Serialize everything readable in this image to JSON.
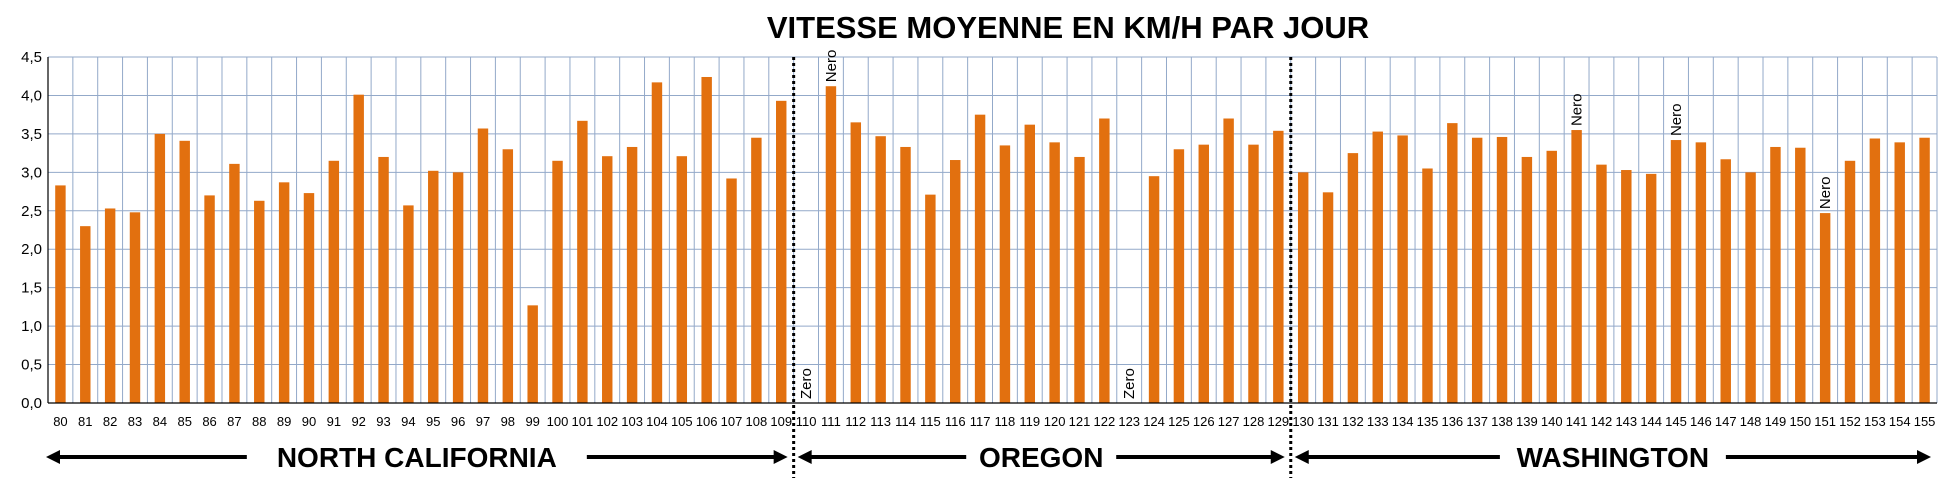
{
  "chart_data": {
    "type": "bar",
    "title": "VITESSE MOYENNE EN KM/H PAR JOUR",
    "ylim": [
      0,
      4.5
    ],
    "yticks": [
      "0,0",
      "0,5",
      "1,0",
      "1,5",
      "2,0",
      "2,5",
      "3,0",
      "3,5",
      "4,0",
      "4,5"
    ],
    "grid": true,
    "bar_color": "#E2700F",
    "categories": [
      "80",
      "81",
      "82",
      "83",
      "84",
      "85",
      "86",
      "87",
      "88",
      "89",
      "90",
      "91",
      "92",
      "93",
      "94",
      "95",
      "96",
      "97",
      "98",
      "99",
      "100",
      "101",
      "102",
      "103",
      "104",
      "105",
      "106",
      "107",
      "108",
      "109",
      "110",
      "111",
      "112",
      "113",
      "114",
      "115",
      "116",
      "117",
      "118",
      "119",
      "120",
      "121",
      "122",
      "123",
      "124",
      "125",
      "126",
      "127",
      "128",
      "129",
      "130",
      "131",
      "132",
      "133",
      "134",
      "135",
      "136",
      "137",
      "138",
      "139",
      "140",
      "141",
      "142",
      "143",
      "144",
      "145",
      "146",
      "147",
      "148",
      "149",
      "150",
      "151",
      "152",
      "153",
      "154",
      "155"
    ],
    "values": [
      2.83,
      2.3,
      2.53,
      2.48,
      3.5,
      3.41,
      2.7,
      3.11,
      2.63,
      2.87,
      2.73,
      3.15,
      4.01,
      3.2,
      2.57,
      3.02,
      3.0,
      3.57,
      3.3,
      1.27,
      3.15,
      3.67,
      3.21,
      3.33,
      4.17,
      3.21,
      4.24,
      2.92,
      3.45,
      3.93,
      0,
      4.12,
      3.65,
      3.47,
      3.33,
      2.71,
      3.16,
      3.75,
      3.35,
      3.62,
      3.39,
      3.2,
      3.7,
      0,
      2.95,
      3.3,
      3.36,
      3.7,
      3.36,
      3.54,
      3.0,
      2.74,
      3.25,
      3.53,
      3.48,
      3.05,
      3.64,
      3.45,
      3.46,
      3.2,
      3.28,
      3.55,
      3.1,
      3.03,
      2.98,
      3.42,
      3.39,
      3.17,
      3.0,
      3.33,
      3.32,
      2.47,
      3.15,
      3.44,
      3.39,
      3.45
    ],
    "annotations": [
      {
        "category": "110",
        "text": "Zero"
      },
      {
        "category": "111",
        "text": "Nero"
      },
      {
        "category": "123",
        "text": "Zero"
      },
      {
        "category": "141",
        "text": "Nero"
      },
      {
        "category": "145",
        "text": "Nero"
      },
      {
        "category": "151",
        "text": "Nero"
      }
    ],
    "regions": [
      {
        "label": "NORTH CALIFORNIA",
        "from": "80",
        "to": "109"
      },
      {
        "label": "OREGON",
        "from": "110",
        "to": "129"
      },
      {
        "label": "WASHINGTON",
        "from": "130",
        "to": "155"
      }
    ]
  }
}
